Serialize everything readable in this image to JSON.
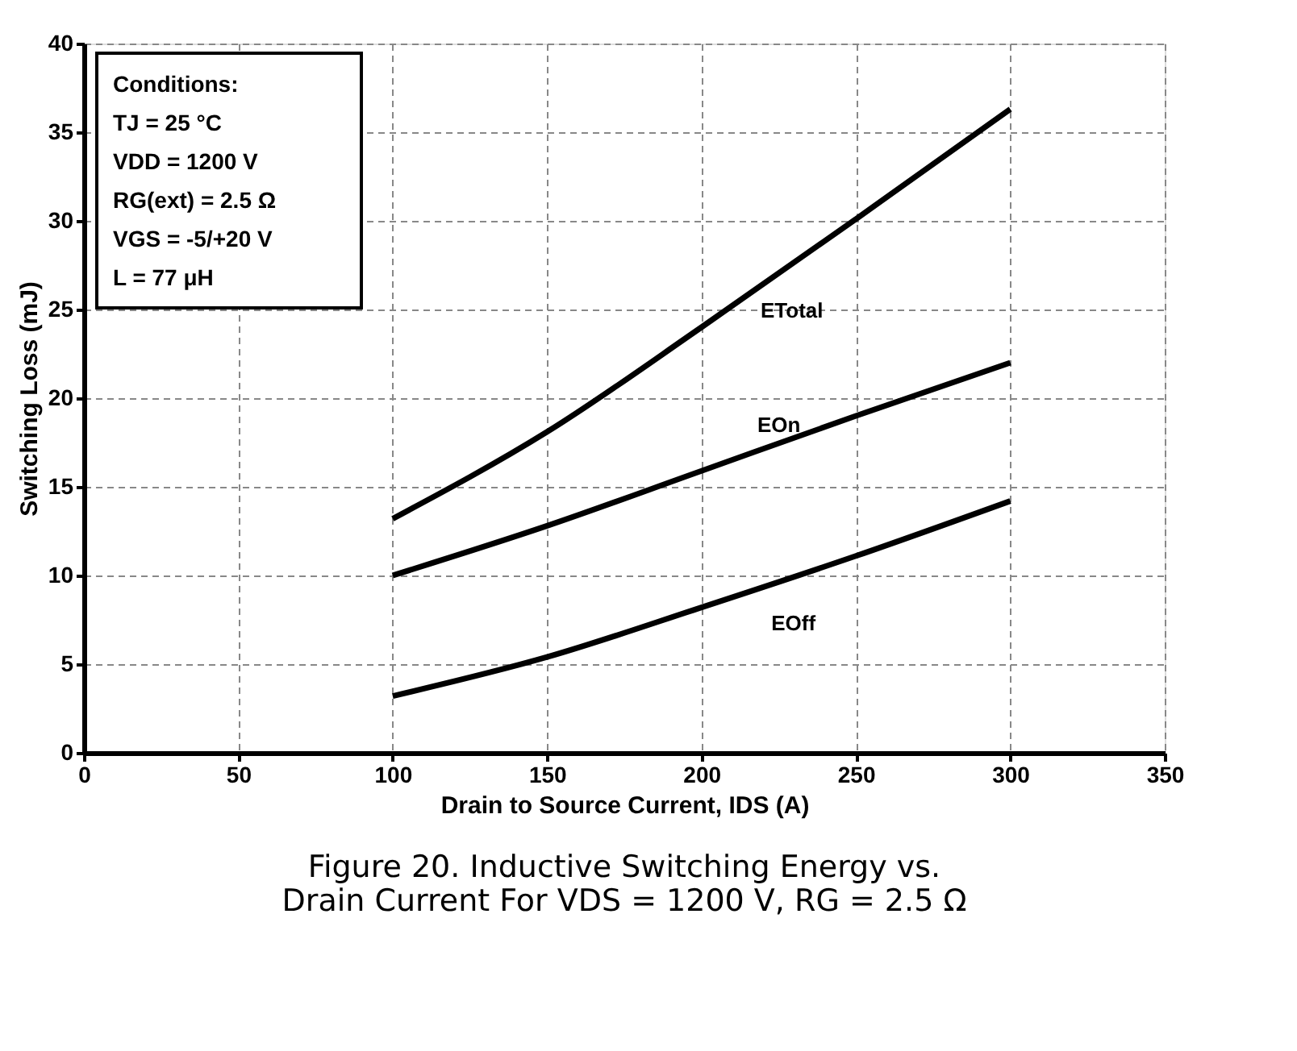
{
  "chart_data": {
    "type": "line",
    "title": "Figure 20. Inductive Switching Energy vs.\nDrain Current For VDS = 1200 V, RG = 2.5 Ω",
    "xlabel": "Drain to Source Current, IDS (A)",
    "ylabel": "Switching Loss (mJ)",
    "x": [
      100,
      150,
      200,
      250,
      300
    ],
    "series": [
      {
        "name": "ETotal",
        "color": "#000000",
        "values": [
          13.2,
          18.1,
          24.0,
          30.1,
          36.3
        ]
      },
      {
        "name": "EOn",
        "color": "#000000",
        "values": [
          10.0,
          12.8,
          15.9,
          19.0,
          22.0
        ]
      },
      {
        "name": "EOff",
        "color": "#000000",
        "values": [
          3.2,
          5.4,
          8.2,
          11.1,
          14.2
        ]
      }
    ],
    "annotations": [
      "Conditions:",
      "TJ = 25 °C",
      "VDD = 1200 V",
      "RG(ext) = 2.5 Ω",
      "VGS = -5/+20 V",
      "L = 77 μH"
    ],
    "xlim": [
      0,
      350
    ],
    "xticks": [
      0,
      50,
      100,
      150,
      200,
      250,
      300,
      350
    ],
    "ylim": [
      0,
      40
    ],
    "yticks": [
      0,
      5,
      10,
      15,
      20,
      25,
      30,
      35,
      40
    ],
    "grid": true,
    "legend": false,
    "marker": "none",
    "line_style": "solid"
  }
}
